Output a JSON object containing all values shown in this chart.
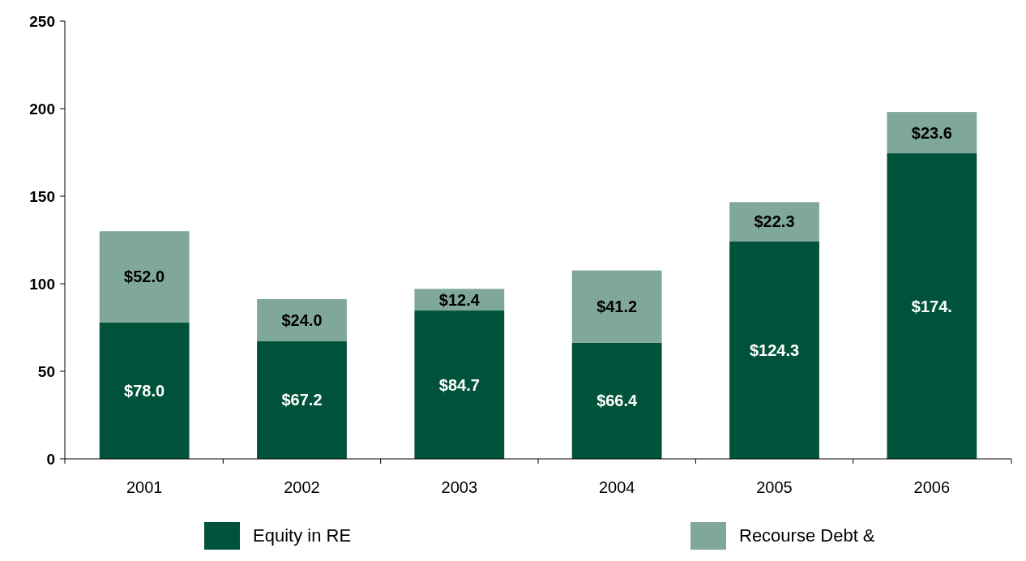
{
  "chart_data": {
    "type": "bar",
    "stacked": true,
    "categories": [
      "2001",
      "2002",
      "2003",
      "2004",
      "2005",
      "2006"
    ],
    "series": [
      {
        "name": "Equity in RE",
        "color": "#00533a",
        "values": [
          78.0,
          67.2,
          84.7,
          66.4,
          124.3,
          174.5
        ],
        "value_labels": [
          "$78.0",
          "$67.2",
          "$84.7",
          "$66.4",
          "$124.3",
          "$174."
        ]
      },
      {
        "name": "Recourse Debt &",
        "color": "#80a898",
        "values": [
          52.0,
          24.0,
          12.4,
          41.2,
          22.3,
          23.6
        ],
        "value_labels": [
          "$52.0",
          "$24.0",
          "$12.4",
          "$41.2",
          "$22.3",
          "$23.6"
        ]
      }
    ],
    "ylim": [
      0,
      250
    ],
    "yticks": [
      0,
      50,
      100,
      150,
      200,
      250
    ],
    "legend": "bottom",
    "grid": false
  }
}
